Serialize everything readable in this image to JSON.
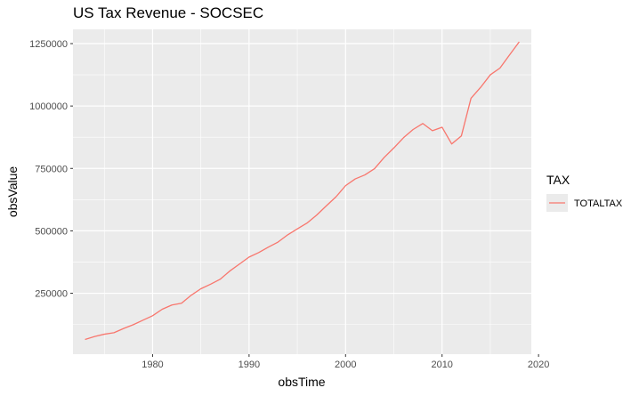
{
  "chart_data": {
    "type": "line",
    "title": "US Tax Revenue - SOCSEC",
    "xlabel": "obsTime",
    "ylabel": "obsValue",
    "xlim": [
      1971.75,
      2019.25
    ],
    "ylim": [
      6000,
      1307000
    ],
    "x_ticks": [
      1980,
      1990,
      2000,
      2010,
      2020
    ],
    "x_tick_labels": [
      "1980",
      "1990",
      "2000",
      "2010",
      "2020"
    ],
    "y_ticks": [
      250000,
      500000,
      750000,
      1000000,
      1250000
    ],
    "y_tick_labels": [
      "250000",
      "500000",
      "750000",
      "1000000",
      "1250000"
    ],
    "grid": true,
    "legend": {
      "title": "TAX",
      "position": "right"
    },
    "series": [
      {
        "name": "TOTALTAX",
        "color": "#F8766D",
        "x": [
          1973,
          1974,
          1975,
          1976,
          1977,
          1978,
          1979,
          1980,
          1981,
          1982,
          1983,
          1984,
          1985,
          1986,
          1987,
          1988,
          1989,
          1990,
          1991,
          1992,
          1993,
          1994,
          1995,
          1996,
          1997,
          1998,
          1999,
          2000,
          2001,
          2002,
          2003,
          2004,
          2005,
          2006,
          2007,
          2008,
          2009,
          2010,
          2011,
          2012,
          2013,
          2014,
          2015,
          2016,
          2017,
          2018
        ],
        "y": [
          65000,
          77000,
          86000,
          92000,
          109000,
          124000,
          142000,
          160000,
          186000,
          203000,
          210000,
          242000,
          268000,
          286000,
          306000,
          339000,
          367000,
          395000,
          413000,
          435000,
          455000,
          484000,
          508000,
          531000,
          563000,
          600000,
          636000,
          681000,
          708000,
          724000,
          749000,
          794000,
          832000,
          873000,
          906000,
          930000,
          901000,
          915000,
          848000,
          880000,
          1031000,
          1075000,
          1125000,
          1152000,
          1205000,
          1257000
        ]
      }
    ]
  }
}
